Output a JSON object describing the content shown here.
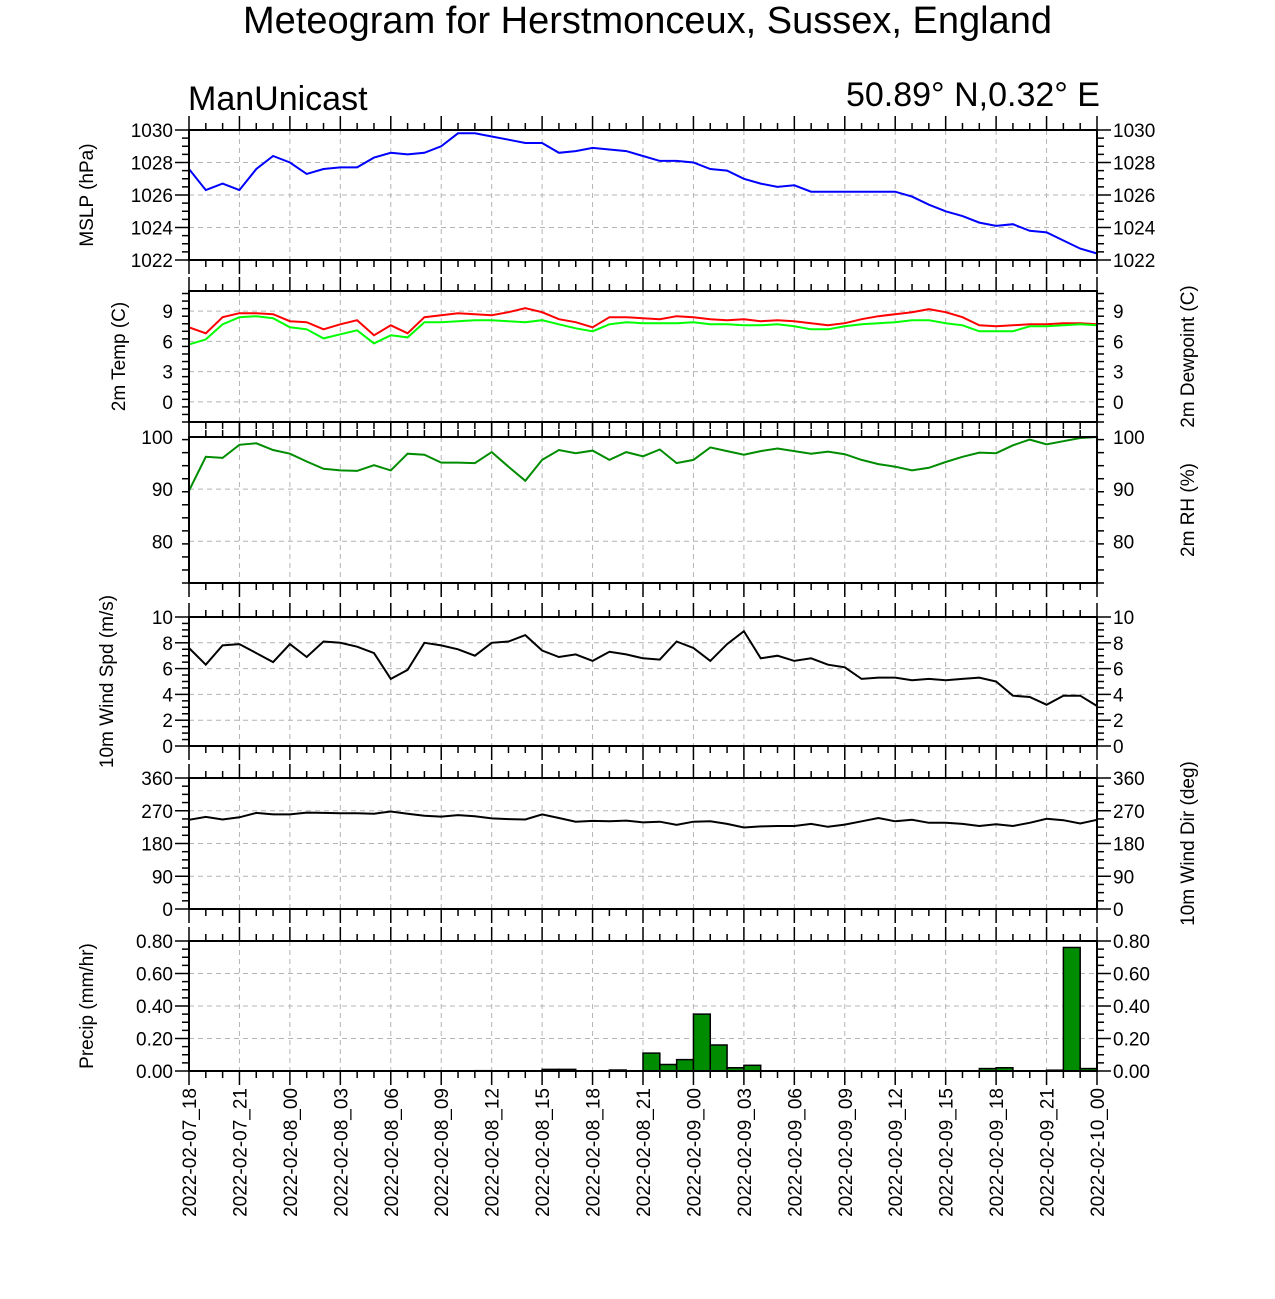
{
  "header": {
    "title": "Meteogram for Herstmonceux, Sussex, England",
    "model": "ManUnicast",
    "location": "50.89° N,0.32° E"
  },
  "colors": {
    "mslp": "#0000ff",
    "temp": "#ff0000",
    "dewpoint": "#00ff00",
    "rh": "#008c00",
    "wind": "#000000",
    "precip": "#008c00",
    "grid": "#b4b4b4"
  },
  "chart_data": {
    "type": "line",
    "x_time_labels": [
      "2022-02-07_18",
      "2022-02-07_21",
      "2022-02-08_00",
      "2022-02-08_03",
      "2022-02-08_06",
      "2022-02-08_09",
      "2022-02-08_12",
      "2022-02-08_15",
      "2022-02-08_18",
      "2022-02-08_21",
      "2022-02-09_00",
      "2022-02-09_03",
      "2022-02-09_06",
      "2022-02-09_09",
      "2022-02-09_12",
      "2022-02-09_15",
      "2022-02-09_18",
      "2022-02-09_21",
      "2022-02-10_00"
    ],
    "x_hours": [
      0,
      1,
      2,
      3,
      4,
      5,
      6,
      7,
      8,
      9,
      10,
      11,
      12,
      13,
      14,
      15,
      16,
      17,
      18,
      19,
      20,
      21,
      22,
      23,
      24,
      25,
      26,
      27,
      28,
      29,
      30,
      31,
      32,
      33,
      34,
      35,
      36,
      37,
      38,
      39,
      40,
      41,
      42,
      43,
      44,
      45,
      46,
      47,
      48,
      49,
      50,
      51,
      52,
      53,
      54
    ],
    "panels": [
      {
        "id": "mslp",
        "type": "line",
        "ylabel_left": "MSLP (hPa)",
        "ylabel_right": "",
        "ylim": [
          1022,
          1030
        ],
        "yticks": [
          1022,
          1024,
          1026,
          1028,
          1030
        ],
        "ytick_labels": [
          "1022",
          "1024",
          "1026",
          "1028",
          "1030"
        ],
        "right_ticks": true,
        "series": [
          {
            "color": "#0000ff",
            "x": [
              0,
              1,
              2,
              3,
              4,
              5,
              6,
              7,
              8,
              9,
              10,
              11,
              12,
              13,
              14,
              15,
              16,
              17,
              18,
              19,
              20,
              21,
              22,
              23,
              24,
              25,
              26,
              27,
              28,
              29,
              30,
              31,
              32,
              33,
              34,
              35,
              36,
              37,
              38,
              39,
              40,
              41,
              42,
              43,
              44,
              45,
              46,
              47,
              48,
              49,
              50,
              51,
              52,
              53,
              54
            ],
            "values": [
              1027.6,
              1026.3,
              1026.7,
              1026.3,
              1027.6,
              1028.4,
              1028.0,
              1027.3,
              1027.6,
              1027.7,
              1027.7,
              1028.3,
              1028.6,
              1028.5,
              1028.6,
              1029.0,
              1029.8,
              1029.8,
              1029.6,
              1029.4,
              1029.2,
              1029.2,
              1028.6,
              1028.7,
              1028.9,
              1028.8,
              1028.7,
              1028.4,
              1028.1,
              1028.1,
              1028.0,
              1027.6,
              1027.5,
              1027.0,
              1026.7,
              1026.5,
              1026.6,
              1026.2,
              1026.2,
              1026.2,
              1026.2,
              1026.2,
              1026.2,
              1025.9,
              1025.4,
              1025.0,
              1024.7,
              1024.3,
              1024.1,
              1024.2,
              1023.8,
              1023.7,
              1023.2,
              1022.7,
              1022.4
            ]
          }
        ]
      },
      {
        "id": "temp",
        "type": "line",
        "ylabel_left": "2m Temp (C)",
        "ylabel_right": "2m Dewpoint (C)",
        "ylim": [
          -2,
          11
        ],
        "yticks": [
          0,
          3,
          6,
          9
        ],
        "ytick_labels": [
          "0",
          "3",
          "6",
          "9"
        ],
        "right_ticks": true,
        "series": [
          {
            "color": "#ff0000",
            "x": [
              0,
              1,
              2,
              3,
              4,
              5,
              6,
              7,
              8,
              9,
              10,
              11,
              12,
              13,
              14,
              15,
              16,
              17,
              18,
              19,
              20,
              21,
              22,
              23,
              24,
              25,
              26,
              27,
              28,
              29,
              30,
              31,
              32,
              33,
              34,
              35,
              36,
              37,
              38,
              39,
              40,
              41,
              42,
              43,
              44,
              45,
              46,
              47,
              48,
              49,
              50,
              51,
              52,
              53,
              54
            ],
            "values": [
              7.4,
              6.8,
              8.4,
              8.8,
              8.8,
              8.7,
              8.0,
              7.9,
              7.2,
              7.7,
              8.1,
              6.6,
              7.6,
              6.8,
              8.4,
              8.6,
              8.8,
              8.7,
              8.6,
              8.9,
              9.3,
              8.9,
              8.2,
              7.9,
              7.4,
              8.4,
              8.4,
              8.3,
              8.2,
              8.5,
              8.4,
              8.2,
              8.1,
              8.2,
              8.0,
              8.1,
              8.0,
              7.8,
              7.6,
              7.8,
              8.2,
              8.5,
              8.7,
              8.9,
              9.2,
              8.9,
              8.4,
              7.6,
              7.5,
              7.6,
              7.7,
              7.7,
              7.8,
              7.8,
              7.7
            ]
          },
          {
            "color": "#00ff00",
            "x": [
              0,
              1,
              2,
              3,
              4,
              5,
              6,
              7,
              8,
              9,
              10,
              11,
              12,
              13,
              14,
              15,
              16,
              17,
              18,
              19,
              20,
              21,
              22,
              23,
              24,
              25,
              26,
              27,
              28,
              29,
              30,
              31,
              32,
              33,
              34,
              35,
              36,
              37,
              38,
              39,
              40,
              41,
              42,
              43,
              44,
              45,
              46,
              47,
              48,
              49,
              50,
              51,
              52,
              53,
              54
            ],
            "values": [
              5.7,
              6.2,
              7.7,
              8.4,
              8.5,
              8.3,
              7.4,
              7.2,
              6.3,
              6.7,
              7.1,
              5.8,
              6.6,
              6.4,
              7.9,
              7.9,
              8.0,
              8.1,
              8.1,
              8.0,
              7.9,
              8.1,
              7.7,
              7.3,
              7.0,
              7.7,
              7.9,
              7.8,
              7.8,
              7.8,
              7.9,
              7.7,
              7.7,
              7.6,
              7.6,
              7.7,
              7.5,
              7.2,
              7.2,
              7.5,
              7.7,
              7.8,
              7.9,
              8.1,
              8.1,
              7.8,
              7.6,
              7.0,
              7.0,
              7.0,
              7.5,
              7.5,
              7.6,
              7.7,
              7.6
            ]
          }
        ]
      },
      {
        "id": "rh",
        "type": "line",
        "ylabel_left": "",
        "ylabel_right": "2m RH (%)",
        "ylim": [
          72,
          100
        ],
        "yticks": [
          80,
          90,
          100
        ],
        "ytick_labels": [
          "80",
          "90",
          "100"
        ],
        "right_ticks": true,
        "series": [
          {
            "color": "#008c00",
            "x": [
              0,
              1,
              2,
              3,
              4,
              5,
              6,
              7,
              8,
              9,
              10,
              11,
              12,
              13,
              14,
              15,
              16,
              17,
              18,
              19,
              20,
              21,
              22,
              23,
              24,
              25,
              26,
              27,
              28,
              29,
              30,
              31,
              32,
              33,
              34,
              35,
              36,
              37,
              38,
              39,
              40,
              41,
              42,
              43,
              44,
              45,
              46,
              47,
              48,
              49,
              50,
              51,
              52,
              53,
              54
            ],
            "values": [
              89.7,
              96.2,
              96.0,
              98.5,
              98.8,
              97.5,
              96.8,
              95.3,
              93.9,
              93.6,
              93.5,
              94.6,
              93.6,
              96.8,
              96.6,
              95.1,
              95.1,
              95.0,
              97.1,
              94.3,
              91.6,
              95.6,
              97.5,
              96.9,
              97.4,
              95.6,
              97.1,
              96.3,
              97.6,
              95.0,
              95.6,
              98.0,
              97.3,
              96.6,
              97.3,
              97.8,
              97.3,
              96.8,
              97.2,
              96.7,
              95.6,
              94.8,
              94.3,
              93.6,
              94.1,
              95.2,
              96.2,
              97.0,
              96.9,
              98.4,
              99.5,
              98.6,
              99.2,
              99.8,
              100.0
            ]
          }
        ]
      },
      {
        "id": "wind_speed",
        "type": "line",
        "ylabel_left": "10m Wind Spd (m/s)",
        "ylabel_right": "",
        "ylim": [
          0,
          10
        ],
        "yticks": [
          0,
          2,
          4,
          6,
          8,
          10
        ],
        "ytick_labels": [
          "0",
          "2",
          "4",
          "6",
          "8",
          "10"
        ],
        "right_ticks": true,
        "series": [
          {
            "color": "#000000",
            "x": [
              0,
              1,
              2,
              3,
              4,
              5,
              6,
              7,
              8,
              9,
              10,
              11,
              12,
              13,
              14,
              15,
              16,
              17,
              18,
              19,
              20,
              21,
              22,
              23,
              24,
              25,
              26,
              27,
              28,
              29,
              30,
              31,
              32,
              33,
              34,
              35,
              36,
              37,
              38,
              39,
              40,
              41,
              42,
              43,
              44,
              45,
              46,
              47,
              48,
              49,
              50,
              51,
              52,
              53,
              54
            ],
            "values": [
              7.6,
              6.3,
              7.8,
              7.9,
              7.2,
              6.5,
              7.9,
              6.9,
              8.1,
              8.0,
              7.7,
              7.2,
              5.2,
              5.9,
              8.0,
              7.8,
              7.5,
              7.0,
              8.0,
              8.1,
              8.6,
              7.4,
              6.9,
              7.1,
              6.6,
              7.3,
              7.1,
              6.8,
              6.7,
              8.1,
              7.6,
              6.6,
              7.9,
              8.9,
              6.8,
              7.0,
              6.6,
              6.8,
              6.3,
              6.1,
              5.2,
              5.3,
              5.3,
              5.1,
              5.2,
              5.1,
              5.2,
              5.3,
              5.0,
              3.9,
              3.8,
              3.2,
              3.9,
              3.9,
              3.1
            ]
          }
        ]
      },
      {
        "id": "wind_dir",
        "type": "line",
        "ylabel_left": "",
        "ylabel_right": "10m Wind Dir (deg)",
        "ylim": [
          0,
          360
        ],
        "yticks": [
          0,
          90,
          180,
          270,
          360
        ],
        "ytick_labels": [
          "0",
          "90",
          "180",
          "270",
          "360"
        ],
        "right_ticks": true,
        "series": [
          {
            "color": "#000000",
            "x": [
              0,
              1,
              2,
              3,
              4,
              5,
              6,
              7,
              8,
              9,
              10,
              11,
              12,
              13,
              14,
              15,
              16,
              17,
              18,
              19,
              20,
              21,
              22,
              23,
              24,
              25,
              26,
              27,
              28,
              29,
              30,
              31,
              32,
              33,
              34,
              35,
              36,
              37,
              38,
              39,
              40,
              41,
              42,
              43,
              44,
              45,
              46,
              47,
              48,
              49,
              50,
              51,
              52,
              53,
              54
            ],
            "values": [
              245,
              253,
              246,
              252,
              264,
              260,
              260,
              265,
              264,
              263,
              263,
              262,
              268,
              262,
              256,
              254,
              258,
              255,
              249,
              247,
              246,
              260,
              250,
              240,
              242,
              241,
              243,
              238,
              240,
              231,
              240,
              241,
              234,
              224,
              227,
              228,
              228,
              234,
              226,
              232,
              241,
              250,
              241,
              245,
              237,
              237,
              234,
              228,
              233,
              228,
              237,
              248,
              244,
              235,
              245
            ]
          }
        ]
      },
      {
        "id": "precip",
        "type": "bar",
        "ylabel_left": "Precip (mm/hr)",
        "ylabel_right": "",
        "ylim": [
          0,
          0.8
        ],
        "yticks": [
          0,
          0.2,
          0.4,
          0.6,
          0.8
        ],
        "ytick_labels": [
          "0.00",
          "0.20",
          "0.40",
          "0.60",
          "0.80"
        ],
        "right_ticks": true,
        "bar_color": "#008c00",
        "x": [
          17,
          21,
          22,
          25,
          27,
          28,
          29,
          30,
          31,
          32,
          33,
          47,
          48,
          51,
          52,
          53
        ],
        "values": [
          0.002,
          0.01,
          0.01,
          0.006,
          0.11,
          0.04,
          0.07,
          0.35,
          0.16,
          0.02,
          0.035,
          0.015,
          0.02,
          0.005,
          0.76,
          0.015
        ]
      }
    ]
  }
}
